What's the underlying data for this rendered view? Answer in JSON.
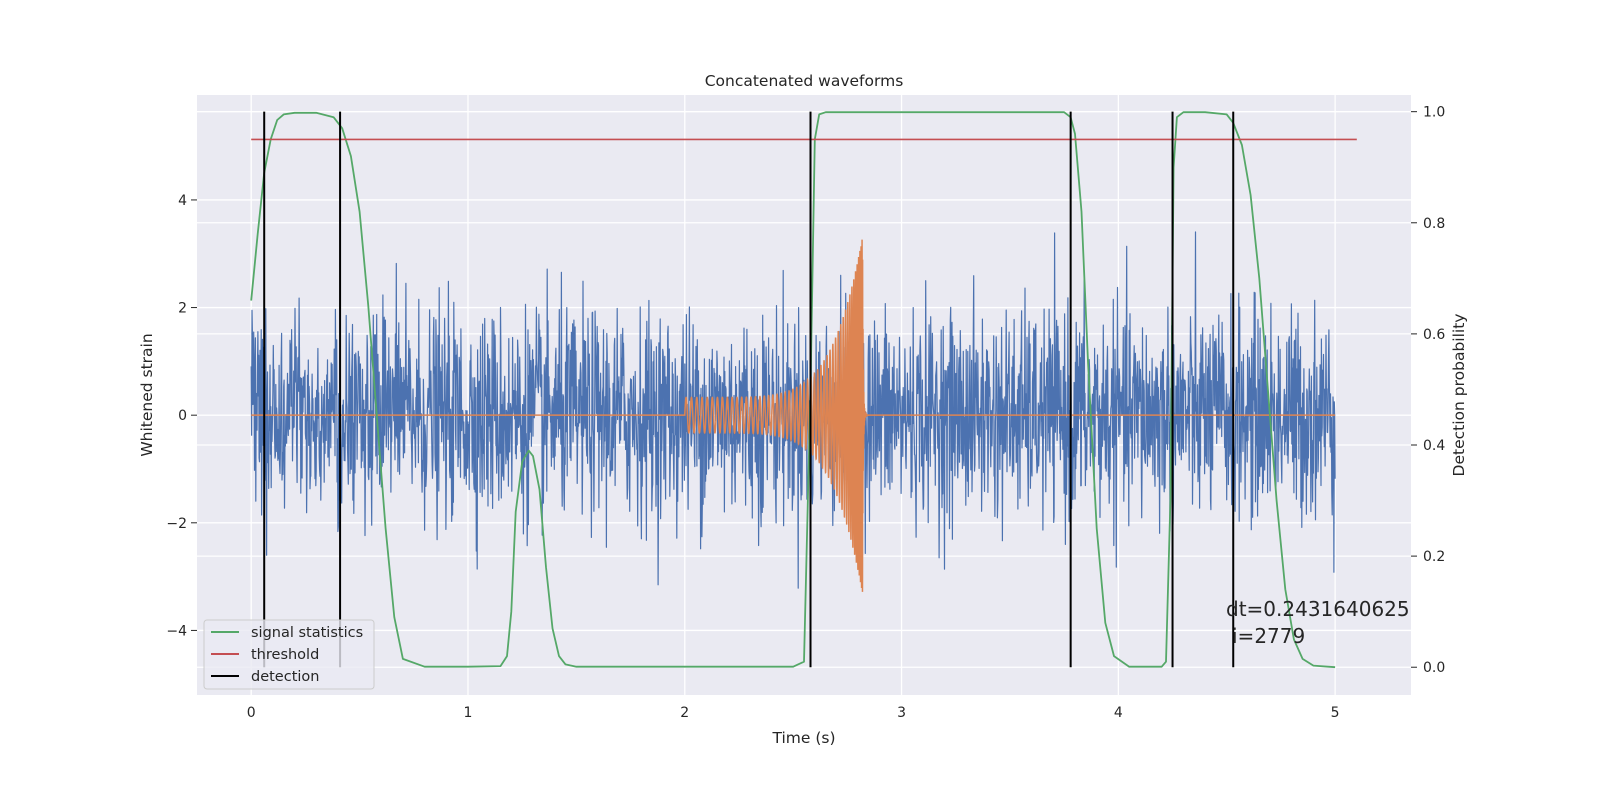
{
  "chart_data": {
    "type": "line",
    "title": "Concatenated waveforms",
    "xlabel": "Time (s)",
    "ylabel": "Whitened strain",
    "y2label": "Detection probability",
    "xlim": [
      -0.25,
      5.35
    ],
    "ylim": [
      -5.2,
      5.95
    ],
    "y2lim": [
      -0.05,
      1.03
    ],
    "x_ticks": [
      0,
      1,
      2,
      3,
      4,
      5
    ],
    "y_ticks": [
      -4,
      -2,
      0,
      2,
      4
    ],
    "y2_ticks": [
      0.0,
      0.2,
      0.4,
      0.6,
      0.8,
      1.0
    ],
    "x_tick_labels": [
      "0",
      "1",
      "2",
      "3",
      "4",
      "5"
    ],
    "y_tick_labels": [
      "−4",
      "−2",
      "0",
      "2",
      "4"
    ],
    "y2_tick_labels": [
      "0.0",
      "0.2",
      "0.4",
      "0.6",
      "0.8",
      "1.0"
    ],
    "grid": true,
    "legend_position": "lower-left",
    "noise": {
      "name": "",
      "color": "#4c72b0",
      "x_range": [
        0,
        5
      ],
      "typical_amplitude": 1.0,
      "max_positive": 3.5,
      "max_negative": -3.6
    },
    "injected_signal": {
      "name": "",
      "color": "#dd8452",
      "start": 2.0,
      "merger": 2.82,
      "end": 3.0,
      "peak_amplitude": 3.4
    },
    "series": [
      {
        "name": "signal statistics",
        "color": "#55a868",
        "axis": "right",
        "x": [
          0,
          0.03,
          0.06,
          0.09,
          0.12,
          0.15,
          0.2,
          0.3,
          0.38,
          0.42,
          0.46,
          0.5,
          0.54,
          0.58,
          0.62,
          0.66,
          0.7,
          0.8,
          1.0,
          1.15,
          1.18,
          1.2,
          1.22,
          1.25,
          1.28,
          1.3,
          1.33,
          1.36,
          1.39,
          1.42,
          1.45,
          1.5,
          1.7,
          2.0,
          2.3,
          2.5,
          2.55,
          2.58,
          2.6,
          2.62,
          2.65,
          2.7,
          3.0,
          3.5,
          3.75,
          3.78,
          3.8,
          3.83,
          3.86,
          3.9,
          3.94,
          3.98,
          4.05,
          4.2,
          4.22,
          4.24,
          4.255,
          4.27,
          4.3,
          4.4,
          4.5,
          4.53,
          4.57,
          4.61,
          4.65,
          4.69,
          4.73,
          4.77,
          4.81,
          4.85,
          4.9,
          5.0
        ],
        "y": [
          0.66,
          0.78,
          0.89,
          0.95,
          0.985,
          0.995,
          0.998,
          0.998,
          0.99,
          0.97,
          0.92,
          0.82,
          0.65,
          0.45,
          0.25,
          0.09,
          0.015,
          0.001,
          0.001,
          0.002,
          0.02,
          0.1,
          0.28,
          0.37,
          0.39,
          0.38,
          0.32,
          0.18,
          0.07,
          0.02,
          0.005,
          0.001,
          0.001,
          0.001,
          0.001,
          0.001,
          0.01,
          0.5,
          0.95,
          0.995,
          0.999,
          0.999,
          0.999,
          0.999,
          0.999,
          0.99,
          0.96,
          0.82,
          0.55,
          0.25,
          0.08,
          0.02,
          0.001,
          0.001,
          0.01,
          0.3,
          0.9,
          0.99,
          0.999,
          0.999,
          0.995,
          0.98,
          0.94,
          0.85,
          0.7,
          0.5,
          0.3,
          0.14,
          0.05,
          0.015,
          0.003,
          0.0
        ]
      },
      {
        "name": "threshold",
        "color": "#c44e52",
        "axis": "right",
        "x": [
          0,
          5.1
        ],
        "y": [
          0.95,
          0.95
        ]
      }
    ],
    "detection": {
      "name": "detection",
      "color": "#000000",
      "x": [
        0.06,
        0.41,
        2.58,
        3.78,
        4.25,
        4.53
      ]
    },
    "annotation": {
      "line1": "dt=0.2431640625",
      "line2": "i=2779"
    },
    "legend": [
      {
        "label": "signal statistics",
        "color": "#55a868"
      },
      {
        "label": "threshold",
        "color": "#c44e52"
      },
      {
        "label": "detection",
        "color": "#000000"
      }
    ]
  }
}
